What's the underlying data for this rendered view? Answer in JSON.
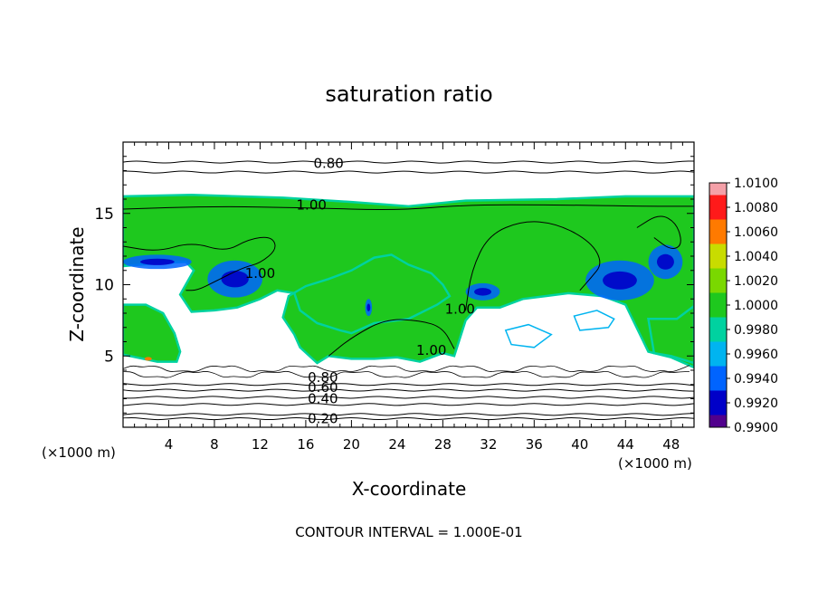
{
  "chart_data": {
    "type": "heatmap",
    "title": "saturation ratio",
    "xlabel": "X-coordinate",
    "ylabel": "Z-coordinate",
    "x_unit": "(×1000 m)",
    "xlim": [
      0,
      50
    ],
    "ylim": [
      0,
      20
    ],
    "x_ticks": [
      4,
      8,
      12,
      16,
      20,
      24,
      28,
      32,
      36,
      40,
      44,
      48
    ],
    "y_ticks": [
      5,
      10,
      15
    ],
    "footer": "CONTOUR INTERVAL = 1.000E-01",
    "colorbar": {
      "levels": [
        "1.0100",
        "1.0080",
        "1.0060",
        "1.0040",
        "1.0020",
        "1.0000",
        "0.9980",
        "0.9960",
        "0.9940",
        "0.9920",
        "0.9900"
      ],
      "colors": [
        "#f4a0a8",
        "#ff1a1a",
        "#ff7a00",
        "#c8dc00",
        "#7ad800",
        "#1ec81e",
        "#00d2a0",
        "#00b4f0",
        "#0064ff",
        "#0000c8",
        "#50008c"
      ]
    },
    "contour_labels": [
      {
        "text": "0.80",
        "x": 18.0,
        "y": 18.5
      },
      {
        "text": "1.00",
        "x": 16.5,
        "y": 15.6
      },
      {
        "text": "1.00",
        "x": 12.0,
        "y": 10.8
      },
      {
        "text": "1.00",
        "x": 29.5,
        "y": 8.3
      },
      {
        "text": "1.00",
        "x": 27.0,
        "y": 5.4
      },
      {
        "text": "0.80",
        "x": 17.5,
        "y": 3.5
      },
      {
        "text": "0.60",
        "x": 17.5,
        "y": 2.8
      },
      {
        "text": "0.40",
        "x": 17.5,
        "y": 2.0
      },
      {
        "text": "0.20",
        "x": 17.5,
        "y": 0.6
      }
    ],
    "background_contours": [
      {
        "level": 0.8,
        "z": 18.6
      },
      {
        "level": 0.8,
        "z": 17.9
      },
      {
        "level": 0.6,
        "z": 3.0
      },
      {
        "level": 0.6,
        "z": 2.6
      },
      {
        "level": 0.4,
        "z": 2.1
      },
      {
        "level": 0.4,
        "z": 1.6
      },
      {
        "level": 0.2,
        "z": 0.9
      },
      {
        "level": 0.2,
        "z": 0.6
      }
    ],
    "regions": {
      "upper_cloud": [
        [
          0,
          16.2
        ],
        [
          6,
          16.3
        ],
        [
          14,
          16.1
        ],
        [
          20,
          15.8
        ],
        [
          25,
          15.5
        ],
        [
          30,
          15.9
        ],
        [
          38,
          16.0
        ],
        [
          44,
          16.2
        ],
        [
          50,
          16.2
        ],
        [
          50,
          4.2
        ],
        [
          48,
          4.9
        ],
        [
          46,
          5.3
        ],
        [
          44,
          8.6
        ],
        [
          42,
          9.2
        ],
        [
          39,
          9.4
        ],
        [
          37,
          9.2
        ],
        [
          35,
          9.0
        ],
        [
          33,
          8.4
        ],
        [
          31,
          8.4
        ],
        [
          30,
          7.5
        ],
        [
          29,
          5.0
        ],
        [
          28,
          5.2
        ],
        [
          26,
          4.6
        ],
        [
          24,
          4.9
        ],
        [
          22,
          4.8
        ],
        [
          20,
          4.8
        ],
        [
          18,
          5.0
        ],
        [
          17,
          4.5
        ],
        [
          15.5,
          5.6
        ],
        [
          15,
          6.5
        ],
        [
          14,
          7.7
        ],
        [
          14.5,
          9.2
        ],
        [
          16,
          9.9
        ],
        [
          18,
          10.4
        ],
        [
          20,
          11.0
        ],
        [
          22,
          11.9
        ],
        [
          23.5,
          12.1
        ],
        [
          25,
          11.4
        ],
        [
          27,
          10.8
        ],
        [
          28,
          10.0
        ],
        [
          28.6,
          9.2
        ],
        [
          27.5,
          8.6
        ],
        [
          25,
          7.6
        ],
        [
          22,
          7.3
        ],
        [
          20,
          6.6
        ],
        [
          19,
          6.8
        ],
        [
          17,
          7.3
        ],
        [
          15.5,
          8.2
        ],
        [
          15,
          9.4
        ],
        [
          13.5,
          9.6
        ],
        [
          12,
          9.0
        ],
        [
          10,
          8.4
        ],
        [
          8,
          8.2
        ],
        [
          6,
          8.1
        ],
        [
          5,
          9.3
        ],
        [
          6.2,
          11.0
        ],
        [
          5.5,
          11.6
        ],
        [
          3,
          11.5
        ],
        [
          0,
          11.3
        ]
      ],
      "left_lower_cloud": [
        [
          0,
          8.6
        ],
        [
          2,
          8.6
        ],
        [
          3.5,
          8.0
        ],
        [
          4.5,
          6.6
        ],
        [
          5,
          5.3
        ],
        [
          4.7,
          4.6
        ],
        [
          3,
          4.6
        ],
        [
          0,
          5.1
        ]
      ],
      "far_right_cloud": [
        [
          46,
          7.6
        ],
        [
          48.5,
          7.6
        ],
        [
          50,
          8.5
        ],
        [
          50,
          4.5
        ],
        [
          48,
          5.0
        ],
        [
          46.5,
          5.2
        ]
      ],
      "white_pockets": [
        [
          [
            39.5,
            7.8
          ],
          [
            41.5,
            8.2
          ],
          [
            43,
            7.6
          ],
          [
            42.5,
            7.0
          ],
          [
            40,
            6.8
          ]
        ],
        [
          [
            33.5,
            6.8
          ],
          [
            35.5,
            7.2
          ],
          [
            37.5,
            6.5
          ],
          [
            36,
            5.6
          ],
          [
            34,
            5.8
          ]
        ]
      ],
      "blue_patches": [
        {
          "x": 9.8,
          "z": 10.4,
          "rx": 2.4,
          "rz": 1.3
        },
        {
          "x": 43.5,
          "z": 10.3,
          "rx": 3.0,
          "rz": 1.4
        },
        {
          "x": 47.5,
          "z": 11.6,
          "rx": 1.5,
          "rz": 1.2
        },
        {
          "x": 3.0,
          "z": 11.6,
          "rx": 3.0,
          "rz": 0.5
        },
        {
          "x": 31.5,
          "z": 9.5,
          "rx": 1.5,
          "rz": 0.6
        },
        {
          "x": 21.5,
          "z": 8.4,
          "rx": 0.3,
          "rz": 0.6
        }
      ],
      "inner_contours": [
        [
          [
            0,
            15.3
          ],
          [
            8,
            15.5
          ],
          [
            16,
            15.4
          ],
          [
            24,
            15.2
          ],
          [
            30,
            15.6
          ],
          [
            38,
            15.6
          ],
          [
            46,
            15.5
          ],
          [
            50,
            15.5
          ]
        ],
        [
          [
            30,
            8.2
          ],
          [
            30.5,
            11.0
          ],
          [
            32,
            13.5
          ],
          [
            35,
            14.5
          ],
          [
            38,
            14.3
          ],
          [
            41,
            13.0
          ],
          [
            42,
            11.5
          ],
          [
            41,
            10.5
          ],
          [
            40,
            9.6
          ]
        ],
        [
          [
            0,
            12.7
          ],
          [
            3,
            12.3
          ],
          [
            6,
            13.0
          ],
          [
            9,
            12.3
          ],
          [
            11,
            13.2
          ],
          [
            13,
            13.4
          ],
          [
            13.5,
            12.5
          ],
          [
            12,
            11.5
          ],
          [
            10.5,
            11.2
          ],
          [
            8,
            10.2
          ],
          [
            6.5,
            9.6
          ],
          [
            5.5,
            9.6
          ]
        ],
        [
          [
            18,
            5.0
          ],
          [
            20,
            6.3
          ],
          [
            23,
            7.6
          ],
          [
            26,
            7.5
          ],
          [
            28,
            7.0
          ],
          [
            29,
            5.5
          ]
        ],
        [
          [
            45,
            14.0
          ],
          [
            47,
            15.0
          ],
          [
            48.5,
            14.3
          ],
          [
            49,
            12.8
          ],
          [
            48,
            12.4
          ],
          [
            46.5,
            13.3
          ]
        ]
      ]
    }
  }
}
